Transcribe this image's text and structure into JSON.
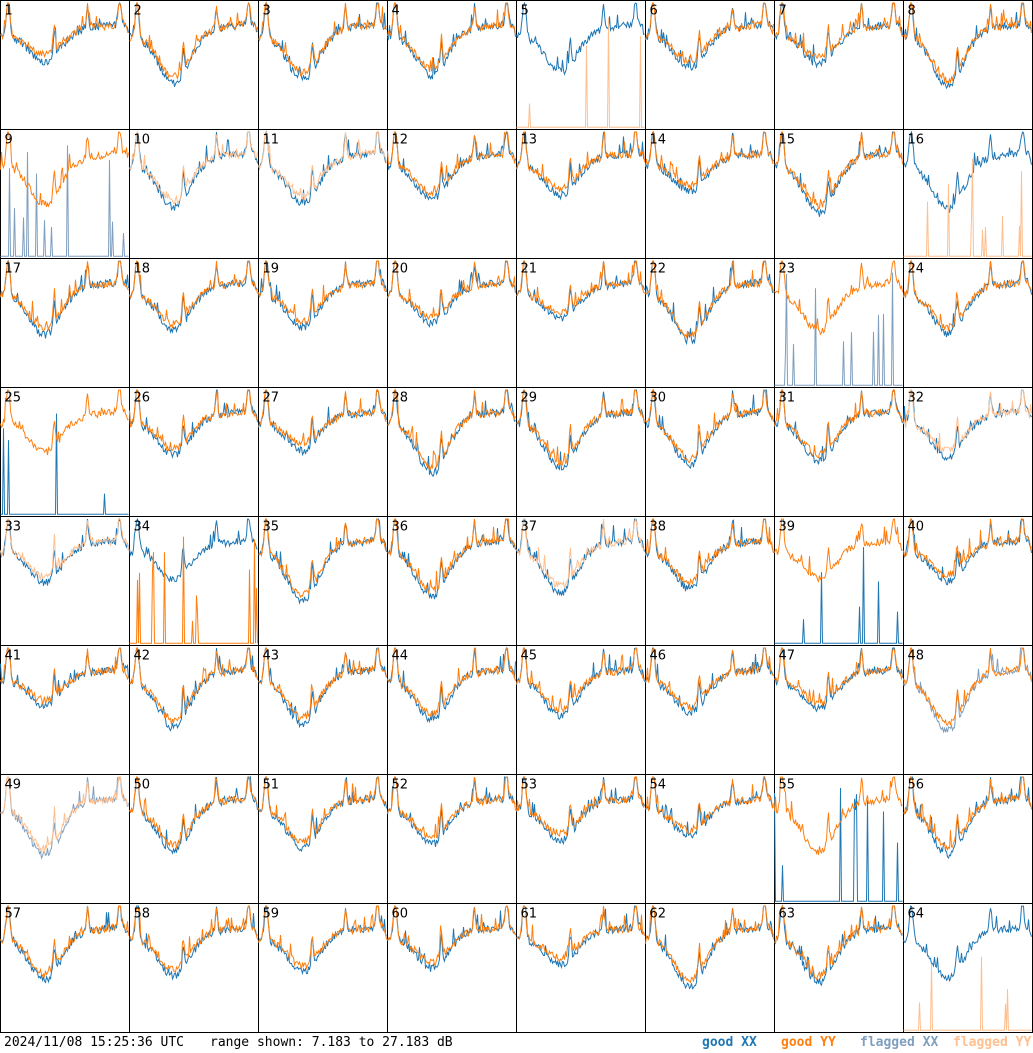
{
  "chart_data": {
    "type": "line",
    "panel_labels": [
      "1",
      "2",
      "3",
      "4",
      "5",
      "6",
      "7",
      "8",
      "9",
      "10",
      "11",
      "12",
      "13",
      "14",
      "15",
      "16",
      "17",
      "18",
      "19",
      "20",
      "21",
      "22",
      "23",
      "24",
      "25",
      "26",
      "27",
      "28",
      "29",
      "30",
      "31",
      "32",
      "33",
      "34",
      "35",
      "36",
      "37",
      "38",
      "39",
      "40",
      "41",
      "42",
      "43",
      "44",
      "45",
      "46",
      "47",
      "48",
      "49",
      "50",
      "51",
      "52",
      "53",
      "54",
      "55",
      "56",
      "57",
      "58",
      "59",
      "60",
      "61",
      "62",
      "63",
      "64"
    ],
    "ylim": [
      7.183,
      27.183
    ],
    "unit": "dB",
    "grid": false,
    "series": [
      {
        "name": "good XX",
        "color": "#1f77b4"
      },
      {
        "name": "good YY",
        "color": "#ff7f0e"
      },
      {
        "name": "flagged XX",
        "color": "#7f9fbf"
      },
      {
        "name": "flagged YY",
        "color": "#ffbf8f"
      }
    ],
    "flagged": {
      "xx": [
        "9",
        "23",
        "48",
        "49"
      ],
      "yy": [
        "5",
        "10",
        "11",
        "16",
        "32",
        "33",
        "37",
        "49",
        "64"
      ]
    },
    "spiky_xx": [
      "9",
      "23",
      "25",
      "39",
      "55"
    ],
    "spiky_yy": [
      "5",
      "16",
      "34",
      "64"
    ]
  },
  "footer": {
    "timestamp": "2024/11/08 15:25:36 UTC",
    "range": "range shown: 7.183 to 27.183 dB",
    "legend": {
      "good_xx": "good XX",
      "good_yy": "good YY",
      "flagged_xx": "flagged XX",
      "flagged_yy": "flagged YY"
    }
  }
}
